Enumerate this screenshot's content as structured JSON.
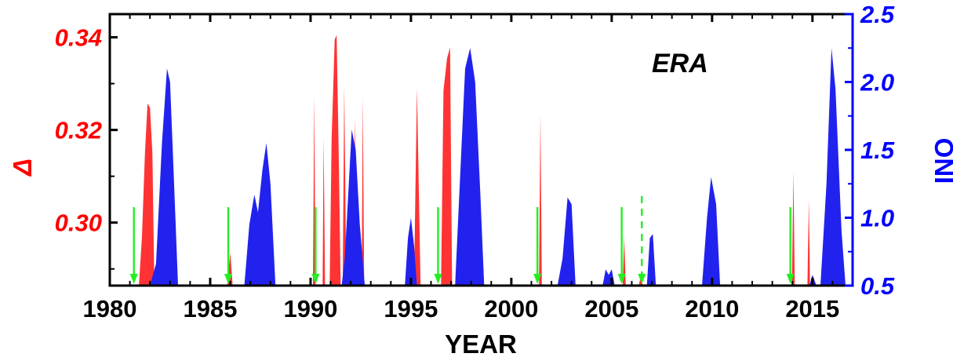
{
  "chart_data": {
    "type": "area",
    "annotation": "ERA",
    "xlabel": "YEAR",
    "ylabel_left": "Δ",
    "ylabel_right": "ONI",
    "xlim": [
      1980,
      2017
    ],
    "ylim_left": [
      0.2864,
      0.345
    ],
    "ylim_right": [
      0.5,
      2.5
    ],
    "x_ticks": [
      1980,
      1985,
      1990,
      1995,
      2000,
      2005,
      2010,
      2015
    ],
    "y_left_ticks": [
      0.3,
      0.32,
      0.34
    ],
    "y_right_ticks": [
      0.5,
      1.0,
      1.5,
      2.0,
      2.5
    ],
    "x_tick_labels": [
      "1980",
      "1985",
      "1990",
      "1995",
      "2000",
      "2005",
      "2010",
      "2015"
    ],
    "y_left_tick_labels": [
      "0.30",
      "0.32",
      "0.34"
    ],
    "y_right_tick_labels": [
      "0.5",
      "1.0",
      "1.5",
      "2.0",
      "2.5"
    ],
    "colors": {
      "delta": "#ff3333",
      "oni": "#2222ee",
      "arrows": "#22ee22",
      "left_axis_text": "#ff0000",
      "right_axis_text": "#0000ff"
    },
    "series": [
      {
        "axis": "left",
        "color": "#ff3333",
        "peaks": [
          {
            "points": [
              [
                1981.45,
                0.2864
              ],
              [
                1981.6,
                0.297
              ],
              [
                1981.75,
                0.315
              ],
              [
                1981.88,
                0.3257
              ],
              [
                1982.0,
                0.3248
              ],
              [
                1982.12,
                0.315
              ],
              [
                1982.22,
                0.2864
              ]
            ]
          },
          {
            "points": [
              [
                1985.85,
                0.2864
              ],
              [
                1986.0,
                0.2935
              ],
              [
                1986.12,
                0.2864
              ]
            ]
          },
          {
            "points": [
              [
                1990.12,
                0.2864
              ],
              [
                1990.18,
                0.3275
              ],
              [
                1990.25,
                0.2864
              ]
            ]
          },
          {
            "points": [
              [
                1990.6,
                0.2864
              ],
              [
                1990.65,
                0.3187
              ],
              [
                1990.72,
                0.2864
              ]
            ]
          },
          {
            "points": [
              [
                1990.95,
                0.2864
              ],
              [
                1991.05,
                0.318
              ],
              [
                1991.2,
                0.3395
              ],
              [
                1991.3,
                0.3405
              ],
              [
                1991.42,
                0.31
              ],
              [
                1991.5,
                0.2864
              ]
            ]
          },
          {
            "points": [
              [
                1991.6,
                0.2864
              ],
              [
                1991.68,
                0.3295
              ],
              [
                1991.78,
                0.2864
              ]
            ]
          },
          {
            "points": [
              [
                1992.1,
                0.2864
              ],
              [
                1992.2,
                0.3225
              ],
              [
                1992.3,
                0.2864
              ]
            ]
          },
          {
            "points": [
              [
                1992.55,
                0.2864
              ],
              [
                1992.6,
                0.3275
              ],
              [
                1992.67,
                0.2864
              ]
            ]
          },
          {
            "points": [
              [
                1995.15,
                0.2864
              ],
              [
                1995.3,
                0.329
              ],
              [
                1995.48,
                0.2864
              ]
            ]
          },
          {
            "points": [
              [
                1996.5,
                0.2864
              ],
              [
                1996.62,
                0.3285
              ],
              [
                1996.8,
                0.3355
              ],
              [
                1996.95,
                0.3378
              ],
              [
                1997.05,
                0.2864
              ]
            ]
          },
          {
            "points": [
              [
                2001.38,
                0.2864
              ],
              [
                2001.45,
                0.3235
              ],
              [
                2001.52,
                0.2864
              ]
            ]
          },
          {
            "points": [
              [
                2005.55,
                0.2864
              ],
              [
                2005.62,
                0.297
              ],
              [
                2005.7,
                0.2864
              ]
            ]
          },
          {
            "points": [
              [
                2006.35,
                0.2864
              ],
              [
                2006.45,
                0.2885
              ],
              [
                2006.55,
                0.2864
              ]
            ]
          },
          {
            "points": [
              [
                2013.98,
                0.2864
              ],
              [
                2014.05,
                0.311
              ],
              [
                2014.12,
                0.2864
              ]
            ]
          },
          {
            "points": [
              [
                2014.75,
                0.2864
              ],
              [
                2014.82,
                0.305
              ],
              [
                2014.88,
                0.2864
              ]
            ]
          }
        ]
      },
      {
        "axis": "right",
        "color": "#2222ee",
        "peaks": [
          {
            "points": [
              [
                1982.0,
                0.5
              ],
              [
                1982.3,
                0.66
              ],
              [
                1982.6,
                1.55
              ],
              [
                1982.85,
                2.1
              ],
              [
                1983.0,
                2.0
              ],
              [
                1983.15,
                1.45
              ],
              [
                1983.4,
                0.5
              ]
            ]
          },
          {
            "points": [
              [
                1986.7,
                0.5
              ],
              [
                1986.95,
                0.95
              ],
              [
                1987.2,
                1.17
              ],
              [
                1987.38,
                1.04
              ],
              [
                1987.6,
                1.35
              ],
              [
                1987.8,
                1.55
              ],
              [
                1988.0,
                1.25
              ],
              [
                1988.25,
                0.5
              ]
            ]
          },
          {
            "points": [
              [
                1991.55,
                0.5
              ],
              [
                1991.7,
                0.7
              ],
              [
                1991.85,
                1.1
              ],
              [
                1992.05,
                1.65
              ],
              [
                1992.25,
                1.5
              ],
              [
                1992.45,
                0.95
              ],
              [
                1992.7,
                0.5
              ]
            ]
          },
          {
            "points": [
              [
                1994.7,
                0.5
              ],
              [
                1994.85,
                0.85
              ],
              [
                1995.0,
                1.0
              ],
              [
                1995.15,
                0.8
              ],
              [
                1995.3,
                0.5
              ]
            ]
          },
          {
            "points": [
              [
                1997.2,
                0.5
              ],
              [
                1997.45,
                1.3
              ],
              [
                1997.7,
                2.1
              ],
              [
                1997.95,
                2.25
              ],
              [
                1998.2,
                2.0
              ],
              [
                1998.45,
                1.2
              ],
              [
                1998.65,
                0.5
              ]
            ]
          },
          {
            "points": [
              [
                2002.3,
                0.5
              ],
              [
                2002.55,
                0.7
              ],
              [
                2002.8,
                1.15
              ],
              [
                2003.0,
                1.1
              ],
              [
                2003.2,
                0.5
              ]
            ]
          },
          {
            "points": [
              [
                2004.55,
                0.5
              ],
              [
                2004.7,
                0.62
              ],
              [
                2004.85,
                0.58
              ],
              [
                2005.0,
                0.62
              ],
              [
                2005.15,
                0.5
              ]
            ]
          },
          {
            "points": [
              [
                2006.75,
                0.5
              ],
              [
                2006.9,
                0.85
              ],
              [
                2007.05,
                0.88
              ],
              [
                2007.2,
                0.5
              ]
            ]
          },
          {
            "points": [
              [
                2009.5,
                0.5
              ],
              [
                2009.75,
                1.0
              ],
              [
                2009.95,
                1.3
              ],
              [
                2010.2,
                1.1
              ],
              [
                2010.4,
                0.5
              ]
            ]
          },
          {
            "points": [
              [
                2014.85,
                0.5
              ],
              [
                2015.0,
                0.58
              ],
              [
                2015.2,
                0.5
              ]
            ]
          },
          {
            "points": [
              [
                2015.4,
                0.5
              ],
              [
                2015.7,
                1.25
              ],
              [
                2015.95,
                2.25
              ],
              [
                2016.15,
                1.95
              ],
              [
                2016.45,
                0.9
              ],
              [
                2016.65,
                0.5
              ]
            ]
          }
        ]
      }
    ],
    "arrows": [
      {
        "year": 1981.2,
        "dashed": false
      },
      {
        "year": 1985.9,
        "dashed": false
      },
      {
        "year": 1990.25,
        "dashed": false
      },
      {
        "year": 1996.35,
        "dashed": false
      },
      {
        "year": 2001.3,
        "dashed": false
      },
      {
        "year": 2005.5,
        "dashed": false
      },
      {
        "year": 2006.5,
        "dashed": true
      },
      {
        "year": 2013.9,
        "dashed": false
      }
    ]
  }
}
